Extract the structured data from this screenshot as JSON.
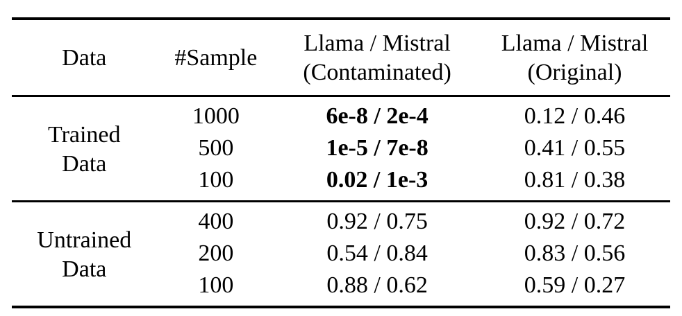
{
  "page": {
    "background_color": "#ffffff",
    "text_color": "#000000",
    "rule_color": "#000000"
  },
  "table": {
    "columns": [
      {
        "label": "Data"
      },
      {
        "label": "#Sample"
      },
      {
        "label": "Llama / Mistral (Contaminated)"
      },
      {
        "label": "Llama / Mistral (Original)"
      }
    ],
    "groups": [
      {
        "label": "Trained Data",
        "rows": [
          {
            "sample": "1000",
            "contaminated": "6e-8 / 2e-4",
            "original": "0.12 / 0.46"
          },
          {
            "sample": "500",
            "contaminated": "1e-5 / 7e-8",
            "original": "0.41 / 0.55"
          },
          {
            "sample": "100",
            "contaminated": "0.02 / 1e-3",
            "original": "0.81 / 0.38"
          }
        ]
      },
      {
        "label": "Untrained Data",
        "rows": [
          {
            "sample": "400",
            "contaminated": "0.92 / 0.75",
            "original": "0.92 / 0.72"
          },
          {
            "sample": "200",
            "contaminated": "0.54 / 0.84",
            "original": "0.83 / 0.56"
          },
          {
            "sample": "100",
            "contaminated": "0.88 / 0.62",
            "original": "0.59 / 0.27"
          }
        ]
      }
    ]
  }
}
